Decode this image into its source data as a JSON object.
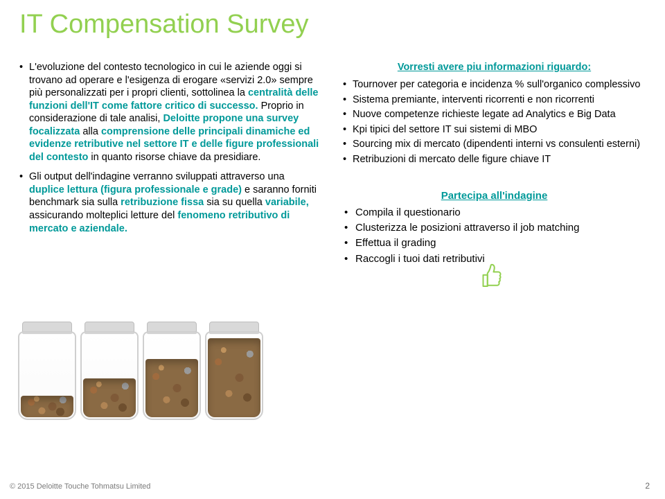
{
  "colors": {
    "accent_green": "#92d050",
    "link_teal": "#009999",
    "text": "#000000",
    "footer": "#7a7a7a"
  },
  "title": "IT Compensation Survey",
  "left_paragraphs": [
    {
      "segments": [
        {
          "t": "L'evoluzione del contesto tecnologico in cui le aziende oggi si trovano ad operare e l'esigenza di erogare «servizi 2.0» sempre più personalizzati per i propri clienti, sottolinea la "
        },
        {
          "t": "centralità delle funzioni dell'IT come fattore critico di successo.",
          "hl": true,
          "c": "link_teal"
        },
        {
          "t": " Proprio in considerazione di tale analisi, "
        },
        {
          "t": "Deloitte propone una survey focalizzata",
          "hl": true,
          "c": "link_teal"
        },
        {
          "t": " alla "
        },
        {
          "t": "comprensione delle principali dinamiche ed evidenze retributive nel settore IT e delle figure professionali del contesto",
          "hl": true,
          "c": "link_teal"
        },
        {
          "t": " in quanto risorse chiave da presidiare."
        }
      ]
    },
    {
      "segments": [
        {
          "t": "Gli output dell'indagine verranno sviluppati attraverso una "
        },
        {
          "t": "duplice lettura (figura professionale e grade)",
          "hl": true,
          "c": "link_teal"
        },
        {
          "t": " e saranno forniti benchmark sia sulla "
        },
        {
          "t": "retribuzione fissa",
          "hl": true,
          "c": "link_teal"
        },
        {
          "t": " sia su quella "
        },
        {
          "t": "variabile,",
          "hl": true,
          "c": "link_teal"
        },
        {
          "t": " assicurando molteplici letture del "
        },
        {
          "t": "fenomeno retributivo di mercato e aziendale.",
          "hl": true,
          "c": "link_teal"
        }
      ]
    }
  ],
  "info_box": {
    "title": "Vorresti avere piu informazioni riguardo:",
    "items": [
      "Tournover per categoria e incidenza % sull'organico complessivo",
      "Sistema premiante, interventi ricorrenti e non ricorrenti",
      "Nuove competenze richieste legate ad Analytics e Big Data",
      "Kpi tipici del settore IT sui sistemi di MBO",
      "Sourcing mix di mercato (dipendenti interni vs consulenti esterni)",
      "Retribuzioni di mercato delle figure chiave IT"
    ]
  },
  "cta": {
    "title": "Partecipa all'indagine",
    "items": [
      "Compila il questionario",
      "Clusterizza le posizioni attraverso il job matching",
      "Effettua il grading",
      "Raccogli i tuoi dati retributivi"
    ]
  },
  "jars": {
    "count": 4,
    "fill_percent": [
      25,
      45,
      68,
      92
    ]
  },
  "footer": "© 2015 Deloitte Touche Tohmatsu Limited",
  "page_number": "2"
}
